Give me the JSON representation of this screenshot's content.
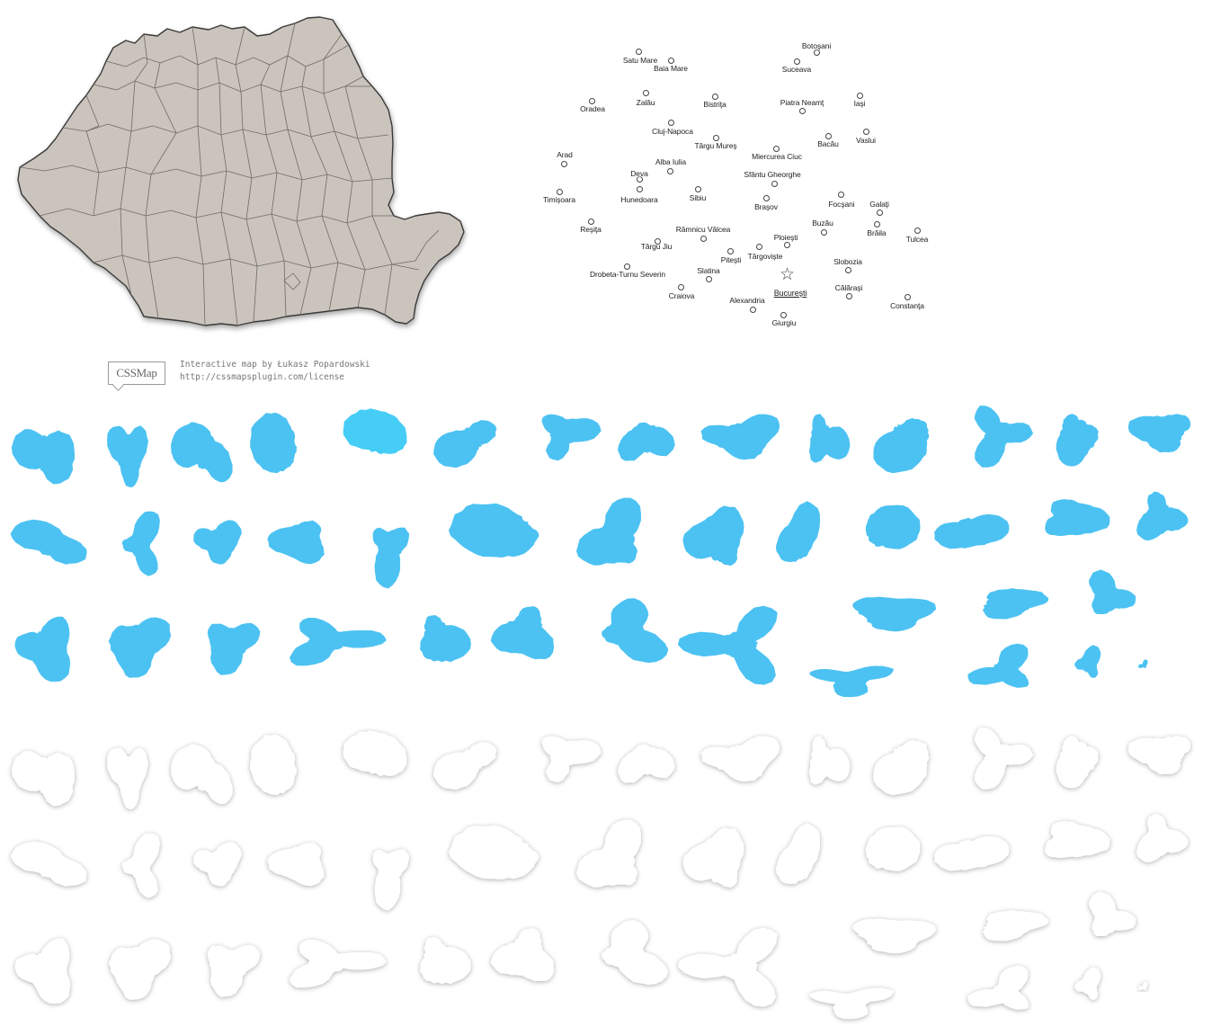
{
  "colors": {
    "land": "#cbc4bc",
    "border": "#3a3a3a",
    "inner_border": "#6f6a66",
    "sprite_blue": "#4cc2f2",
    "sprite_blue_hover": "#45cdf6",
    "sprite_white": "#ffffff"
  },
  "credit": {
    "logo_text": "CSSMap",
    "line1": "Interactive map by Łukasz Popardowski",
    "line2": "http://cssmapsplugin.com/license"
  },
  "cities": [
    {
      "name": "Botoşani"
    },
    {
      "name": "Satu Mare"
    },
    {
      "name": "Baia Mare"
    },
    {
      "name": "Suceava"
    },
    {
      "name": "Oradea"
    },
    {
      "name": "Zalău"
    },
    {
      "name": "Bistriţa"
    },
    {
      "name": "Piatra Neamţ"
    },
    {
      "name": "Iaşi"
    },
    {
      "name": "Cluj-Napoca"
    },
    {
      "name": "Târgu Mureş"
    },
    {
      "name": "Bacău"
    },
    {
      "name": "Vaslui"
    },
    {
      "name": "Arad"
    },
    {
      "name": "Miercurea Ciuc"
    },
    {
      "name": "Alba Iulia"
    },
    {
      "name": "Deva"
    },
    {
      "name": "Sfântu Gheorghe"
    },
    {
      "name": "Timişoara"
    },
    {
      "name": "Hunedoara"
    },
    {
      "name": "Sibiu"
    },
    {
      "name": "Braşov"
    },
    {
      "name": "Focşani"
    },
    {
      "name": "Galaţi"
    },
    {
      "name": "Reşiţa"
    },
    {
      "name": "Râmnicu Vâlcea"
    },
    {
      "name": "Buzău"
    },
    {
      "name": "Brăila"
    },
    {
      "name": "Tulcea"
    },
    {
      "name": "Ploieşti"
    },
    {
      "name": "Târgu Jiu"
    },
    {
      "name": "Piteşti"
    },
    {
      "name": "Târgovişte"
    },
    {
      "name": "Slobozia"
    },
    {
      "name": "Drobeta-Turnu Severin"
    },
    {
      "name": "Slatina"
    },
    {
      "name": "Bucureşti",
      "capital": true
    },
    {
      "name": "Călăraşi"
    },
    {
      "name": "Craiova"
    },
    {
      "name": "Alexandria"
    },
    {
      "name": "Constanţa"
    },
    {
      "name": "Giurgiu"
    }
  ]
}
